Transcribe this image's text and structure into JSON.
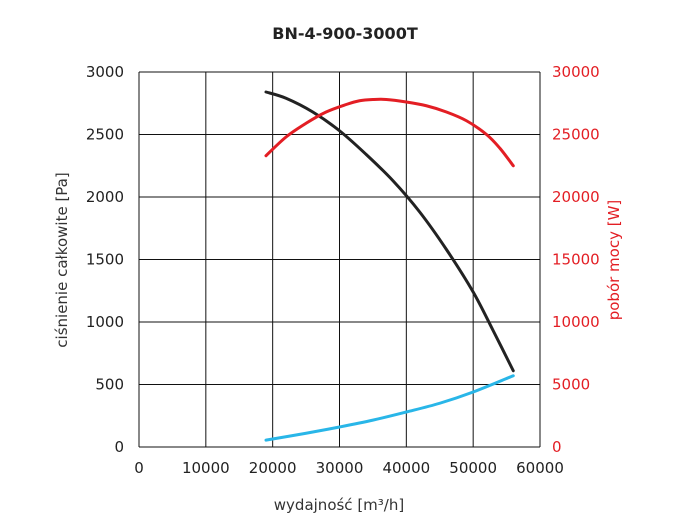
{
  "chart_data": {
    "type": "line",
    "title": "BN-4-900-3000T",
    "xlabel": "wydajność [m³/h]",
    "ylabel": "ciśnienie całkowite [Pa]",
    "y2label": "pobór mocy [W]",
    "xlim": [
      0,
      60000
    ],
    "ylim": [
      0,
      3000
    ],
    "y2lim": [
      0,
      30000
    ],
    "x_ticks": [
      "0",
      "10000",
      "20000",
      "30000",
      "40000",
      "50000",
      "60000"
    ],
    "y_ticks": [
      "0",
      "500",
      "1000",
      "1500",
      "2000",
      "2500",
      "3000"
    ],
    "y2_ticks": [
      "0",
      "5000",
      "10000",
      "15000",
      "20000",
      "25000",
      "30000"
    ],
    "grid": true,
    "series": [
      {
        "axis": "left",
        "color": "#222222",
        "x": [
          19000,
          22000,
          26000,
          30000,
          34000,
          38000,
          42000,
          46000,
          50000,
          53000,
          56000
        ],
        "y": [
          2840,
          2790,
          2680,
          2530,
          2340,
          2130,
          1880,
          1580,
          1240,
          930,
          610
        ]
      },
      {
        "axis": "right",
        "color": "#e31e24",
        "x": [
          19000,
          22000,
          25000,
          28000,
          31000,
          33000,
          35000,
          37000,
          40000,
          43000,
          46000,
          49000,
          52000,
          54000,
          56000
        ],
        "y": [
          23300,
          24800,
          25900,
          26800,
          27400,
          27700,
          27800,
          27800,
          27600,
          27300,
          26800,
          26100,
          25000,
          23900,
          22500
        ]
      },
      {
        "axis": "left",
        "color": "#29b6e8",
        "x": [
          19000,
          25000,
          30000,
          35000,
          40000,
          45000,
          50000,
          56000
        ],
        "y": [
          55,
          110,
          160,
          215,
          280,
          350,
          440,
          570
        ]
      }
    ]
  }
}
